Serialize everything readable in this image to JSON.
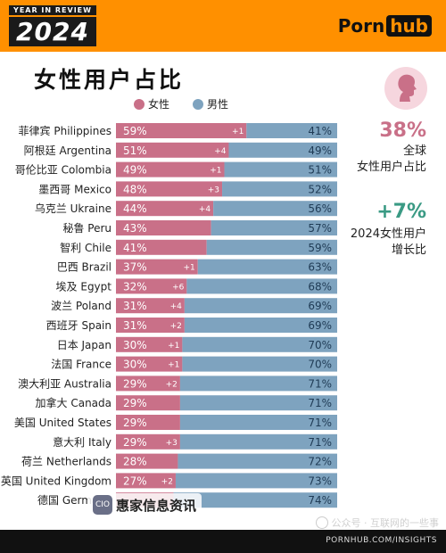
{
  "header": {
    "badge_top": "YEAR IN REVIEW",
    "year": "2024",
    "brand_a": "Porn",
    "brand_b": "hub",
    "bg_color": "#ff9000"
  },
  "title": "女性用户占比",
  "legend": {
    "female": "女性",
    "male": "男性"
  },
  "colors": {
    "female": "#c97088",
    "male": "#7ea3bf",
    "female_light": "#e7a7b8"
  },
  "stats": [
    {
      "value": "38%",
      "label_lines": [
        "全球",
        "女性用户占比"
      ],
      "color": "#c97088"
    },
    {
      "value": "+7%",
      "label_lines": [
        "2024女性用户",
        "增长比"
      ],
      "color": "#3a9a84"
    }
  ],
  "chart_data": {
    "type": "bar",
    "orientation": "horizontal-stacked-100",
    "categories": [
      "菲律宾 Philippines",
      "阿根廷 Argentina",
      "哥伦比亚 Colombia",
      "墨西哥 Mexico",
      "乌克兰 Ukraine",
      "秘鲁 Peru",
      "智利 Chile",
      "巴西 Brazil",
      "埃及 Egypt",
      "波兰 Poland",
      "西班牙 Spain",
      "日本 Japan",
      "法国 France",
      "澳大利亚 Australia",
      "加拿大 Canada",
      "美国 United States",
      "意大利 Italy",
      "荷兰 Netherlands",
      "英国 United Kingdom",
      "德国 Germany"
    ],
    "series": [
      {
        "name": "女性",
        "values": [
          59,
          51,
          49,
          48,
          44,
          43,
          41,
          37,
          32,
          31,
          31,
          30,
          30,
          29,
          29,
          29,
          29,
          28,
          27,
          26
        ]
      },
      {
        "name": "男性",
        "values": [
          41,
          49,
          51,
          52,
          56,
          57,
          59,
          63,
          68,
          69,
          69,
          70,
          70,
          71,
          71,
          71,
          71,
          72,
          73,
          74
        ]
      }
    ],
    "female_labels": [
      "59%",
      "51%",
      "49%",
      "48%",
      "44%",
      "43%",
      "41%",
      "37%",
      "32%",
      "31%",
      "31%",
      "30%",
      "30%",
      "29%",
      "29%",
      "29%",
      "29%",
      "28%",
      "27%",
      ""
    ],
    "male_labels": [
      "41%",
      "49%",
      "51%",
      "52%",
      "56%",
      "57%",
      "59%",
      "63%",
      "68%",
      "69%",
      "69%",
      "70%",
      "70%",
      "71%",
      "71%",
      "71%",
      "71%",
      "72%",
      "73%",
      "74%"
    ],
    "growth": [
      "+1",
      "+4",
      "+1",
      "+3",
      "+4",
      "",
      "",
      "+1",
      "+6",
      "+4",
      "+2",
      "+1",
      "+1",
      "+2",
      "",
      "",
      "+3",
      "",
      "+2",
      ""
    ],
    "xlim": [
      0,
      100
    ]
  },
  "footer": {
    "url": "PORNHUB.COM/INSIGHTS"
  },
  "watermarks": {
    "logo_text": "CIO",
    "name": "惠家信息资讯",
    "account": "公众号 · 互联网的一些事"
  }
}
